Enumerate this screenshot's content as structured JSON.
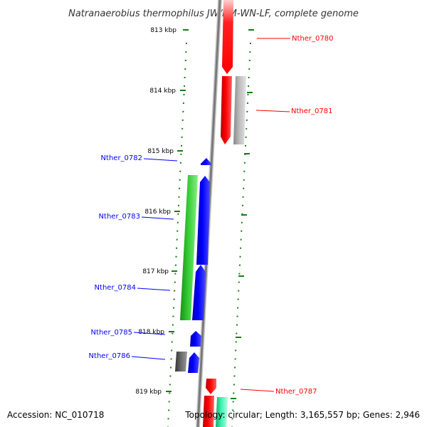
{
  "title": "Natranaerobius thermophilus JW/NM-WN-LF, complete genome",
  "footer": {
    "accession": "Accession: NC_010718",
    "summary": "Topology: circular; Length: 3,165,557 bp; Genes: 2,946"
  },
  "ruler_labels": [
    "813 kbp",
    "814 kbp",
    "815 kbp",
    "816 kbp",
    "817 kbp",
    "818 kbp",
    "819 kbp"
  ],
  "genes": [
    {
      "id": "Nther_0780",
      "strand": "reverse",
      "color": "#ff0000"
    },
    {
      "id": "Nther_0781",
      "strand": "reverse",
      "color": "#ff0000"
    },
    {
      "id": "Nther_0782",
      "strand": "forward",
      "color": "#0000ff"
    },
    {
      "id": "Nther_0783",
      "strand": "forward",
      "color": "#0000ff"
    },
    {
      "id": "Nther_0784",
      "strand": "forward",
      "color": "#0000ff"
    },
    {
      "id": "Nther_0785",
      "strand": "forward",
      "color": "#0000ff"
    },
    {
      "id": "Nther_0786",
      "strand": "forward",
      "color": "#0000ff"
    },
    {
      "id": "Nther_0787",
      "strand": "reverse",
      "color": "#ff0000"
    }
  ],
  "colors": {
    "reverse_gene": "#ff0000",
    "forward_gene": "#0000ff",
    "feature_green": "#2db82d",
    "feature_gray": "#aaaaaa",
    "feature_dark_gray": "#555555",
    "feature_teal": "#33e0a0",
    "ruler": "#1a7a1a",
    "backbone": "#777777"
  }
}
